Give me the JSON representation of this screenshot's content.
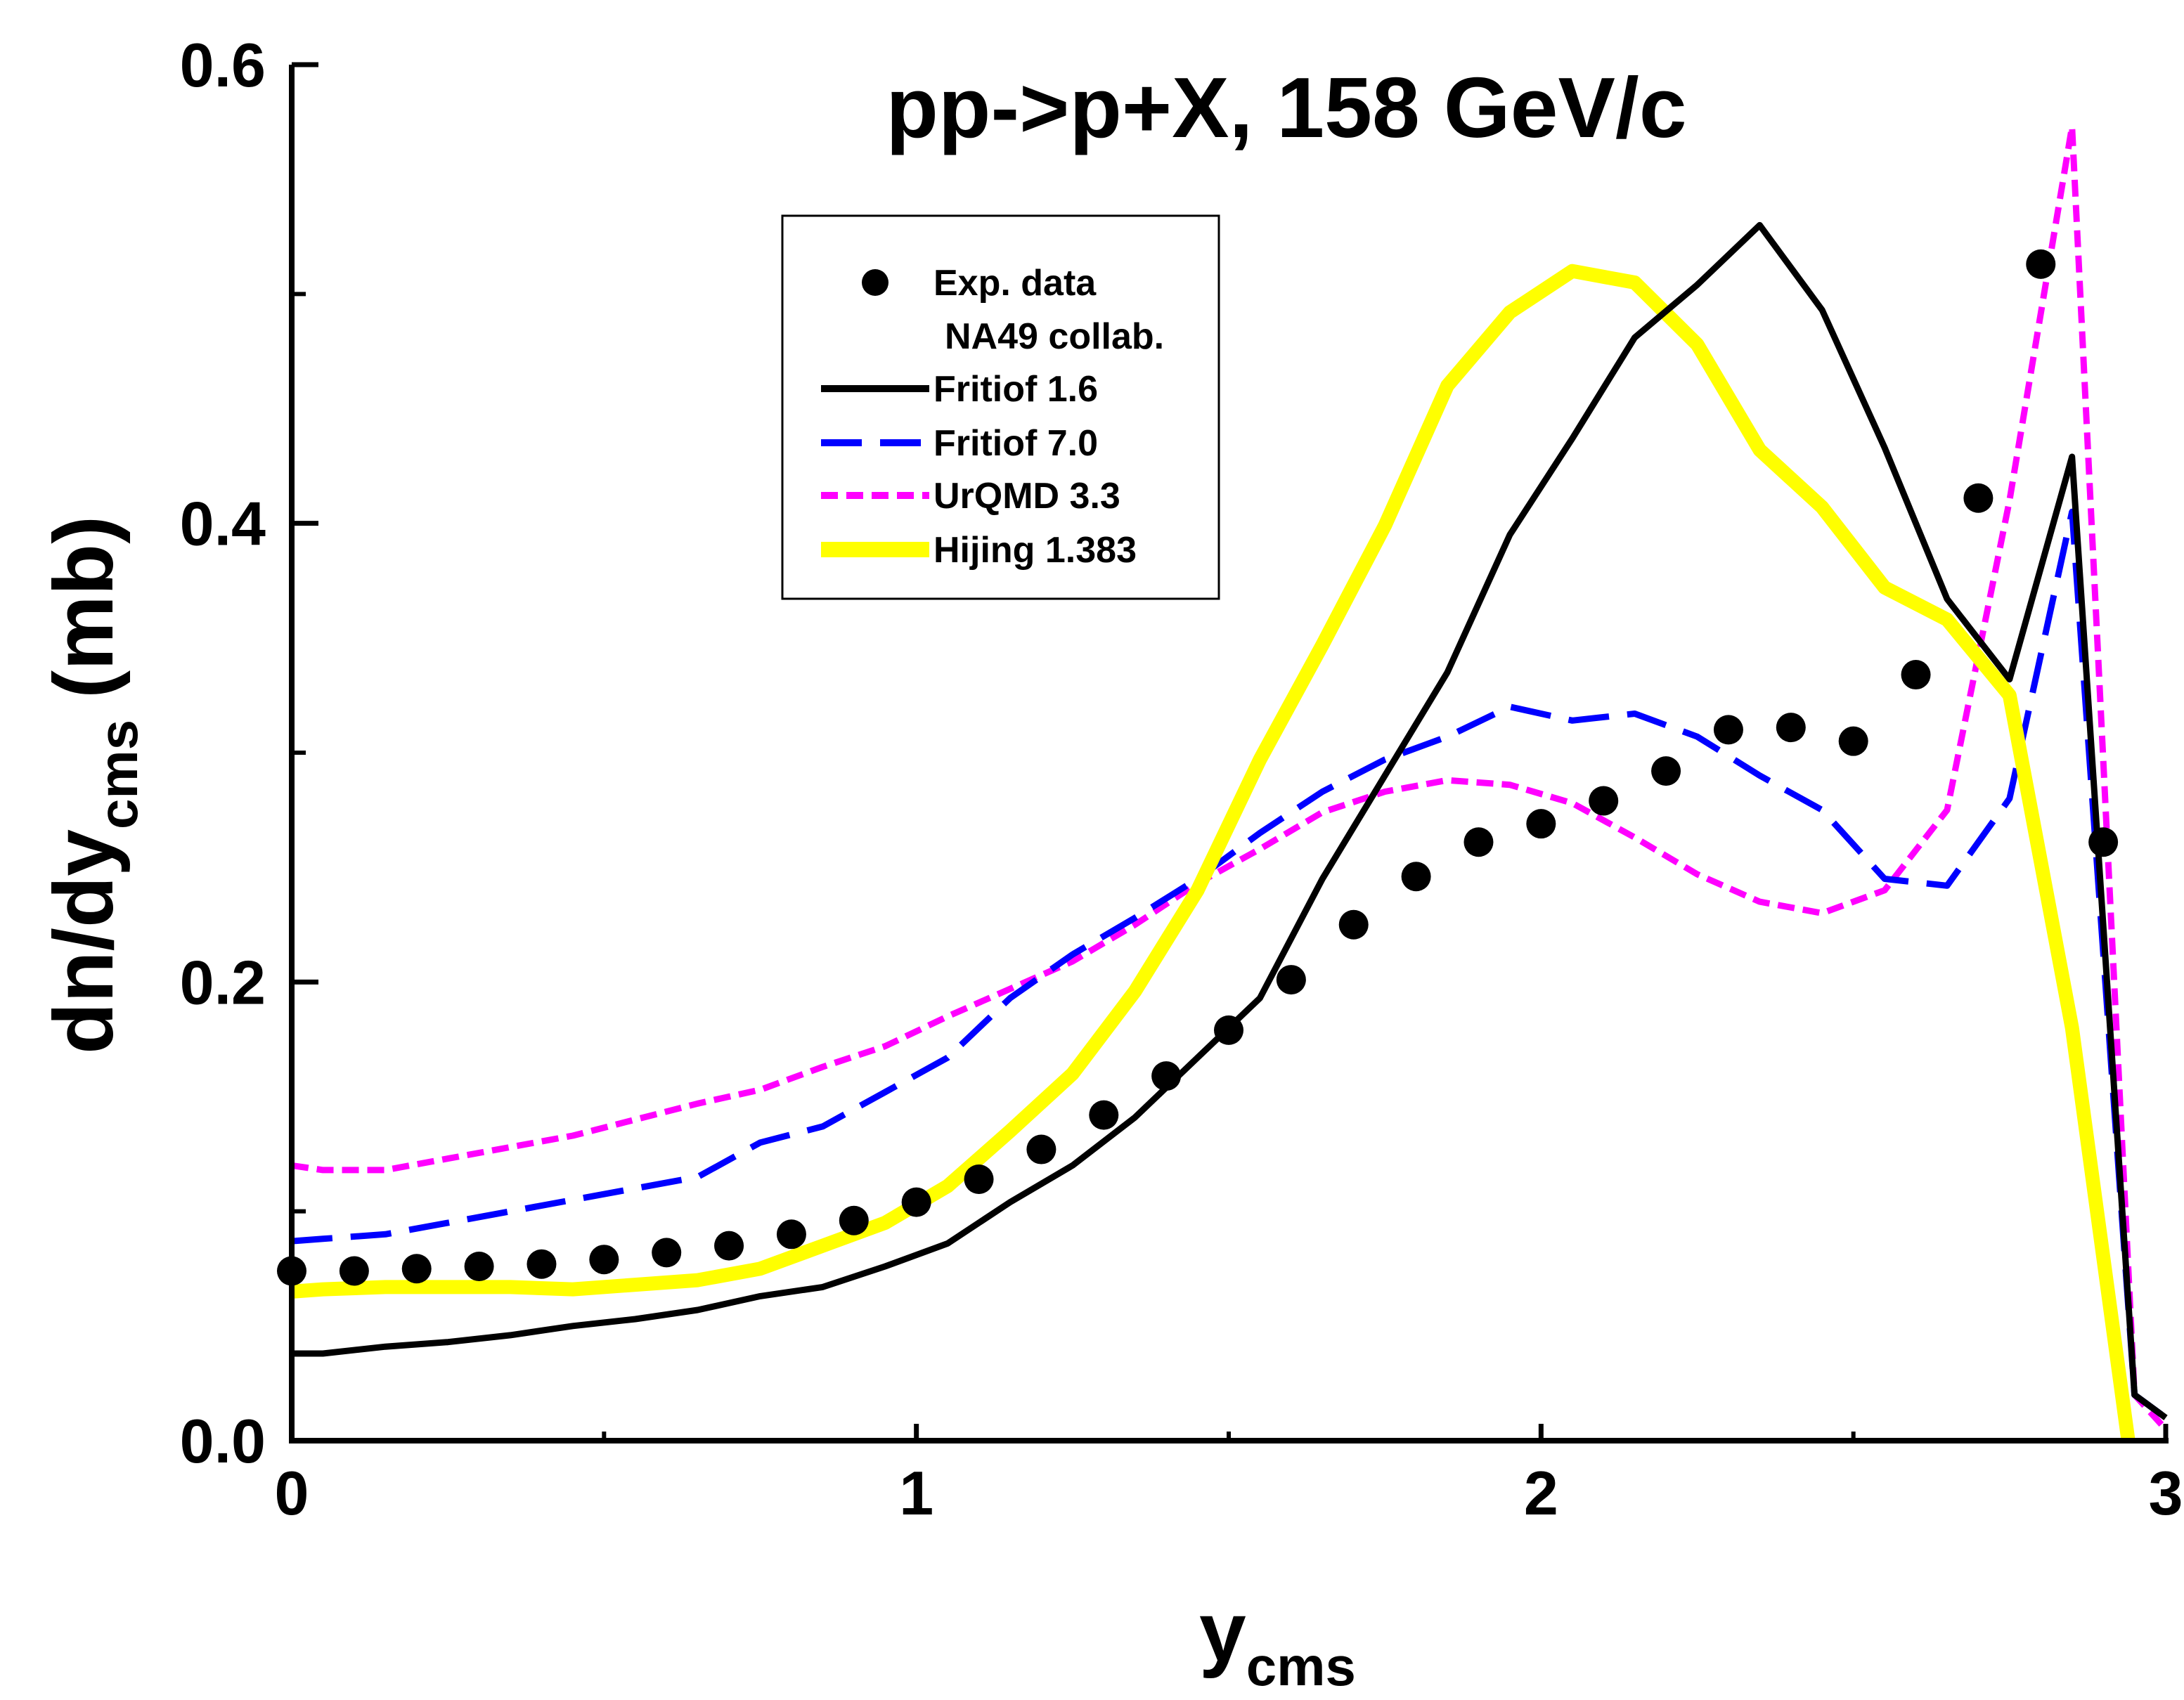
{
  "chart_data": {
    "type": "line",
    "title": "pp->p+X, 158 GeV/c",
    "xlabel": "y",
    "xlabel_sub": "cms",
    "ylabel": "dn/dy",
    "ylabel_sub": "cms",
    "ylabel_unit": "(mb)",
    "xlim": [
      0,
      3
    ],
    "ylim": [
      0,
      0.6
    ],
    "x_major_ticks": [
      0,
      1,
      2,
      3
    ],
    "x_tick_labels": [
      "0",
      "1",
      "2",
      "3"
    ],
    "x_minor_ticks": [
      0.5,
      1.5,
      2.5
    ],
    "y_major_ticks": [
      0,
      0.2,
      0.4,
      0.6
    ],
    "y_tick_labels": [
      "0.0",
      "0.2",
      "0.4",
      "0.6"
    ],
    "y_minor_ticks": [
      0.1,
      0.3,
      0.5
    ],
    "grid": false,
    "legend_position": "top-center",
    "series": [
      {
        "name": "Exp. data",
        "name_line2": "NA49 collab.",
        "style": "markers",
        "color": "#000000",
        "x": [
          0.0,
          0.1,
          0.2,
          0.3,
          0.4,
          0.5,
          0.6,
          0.7,
          0.8,
          0.9,
          1.0,
          1.1,
          1.2,
          1.3,
          1.4,
          1.5,
          1.6,
          1.7,
          1.8,
          1.9,
          2.0,
          2.1,
          2.2,
          2.3,
          2.4,
          2.5,
          2.6,
          2.7,
          2.8,
          2.9
        ],
        "y": [
          0.074,
          0.074,
          0.075,
          0.076,
          0.077,
          0.079,
          0.082,
          0.085,
          0.09,
          0.096,
          0.104,
          0.114,
          0.127,
          0.142,
          0.159,
          0.179,
          0.201,
          0.225,
          0.246,
          0.261,
          0.269,
          0.279,
          0.292,
          0.31,
          0.311,
          0.305,
          0.334,
          0.411,
          0.513,
          0.261
        ]
      },
      {
        "name": "Fritiof 1.6",
        "style": "solid",
        "color": "#000000",
        "x": [
          0.0,
          0.05,
          0.15,
          0.25,
          0.35,
          0.45,
          0.55,
          0.65,
          0.75,
          0.85,
          0.95,
          1.05,
          1.15,
          1.25,
          1.35,
          1.45,
          1.55,
          1.65,
          1.75,
          1.85,
          1.95,
          2.05,
          2.15,
          2.25,
          2.35,
          2.45,
          2.55,
          2.65,
          2.75,
          2.85,
          2.95,
          3.0
        ],
        "y": [
          0.038,
          0.038,
          0.041,
          0.043,
          0.046,
          0.05,
          0.053,
          0.057,
          0.063,
          0.067,
          0.076,
          0.086,
          0.104,
          0.12,
          0.141,
          0.167,
          0.193,
          0.245,
          0.29,
          0.335,
          0.395,
          0.437,
          0.481,
          0.504,
          0.53,
          0.493,
          0.433,
          0.367,
          0.332,
          0.429,
          0.02,
          0.01
        ]
      },
      {
        "name": "Fritiof 7.0",
        "style": "dashed",
        "color": "#0000ff",
        "x": [
          0.0,
          0.05,
          0.15,
          0.25,
          0.35,
          0.45,
          0.55,
          0.65,
          0.75,
          0.85,
          0.95,
          1.05,
          1.15,
          1.25,
          1.35,
          1.45,
          1.55,
          1.65,
          1.75,
          1.85,
          1.95,
          2.05,
          2.15,
          2.25,
          2.35,
          2.45,
          2.55,
          2.65,
          2.75,
          2.85,
          2.95,
          3.0
        ],
        "y": [
          0.087,
          0.088,
          0.09,
          0.095,
          0.1,
          0.105,
          0.11,
          0.115,
          0.13,
          0.137,
          0.152,
          0.167,
          0.193,
          0.212,
          0.228,
          0.245,
          0.265,
          0.283,
          0.297,
          0.307,
          0.32,
          0.314,
          0.317,
          0.307,
          0.29,
          0.275,
          0.245,
          0.242,
          0.28,
          0.405,
          0.02,
          0.01
        ]
      },
      {
        "name": "UrQMD 3.3",
        "style": "short-dashed",
        "color": "#ff00ff",
        "x": [
          0.0,
          0.05,
          0.15,
          0.25,
          0.35,
          0.45,
          0.55,
          0.65,
          0.75,
          0.85,
          0.95,
          1.05,
          1.15,
          1.25,
          1.35,
          1.45,
          1.55,
          1.65,
          1.75,
          1.85,
          1.95,
          2.05,
          2.15,
          2.25,
          2.35,
          2.45,
          2.55,
          2.65,
          2.75,
          2.85,
          2.95,
          3.0
        ],
        "y": [
          0.12,
          0.118,
          0.118,
          0.123,
          0.128,
          0.133,
          0.14,
          0.147,
          0.153,
          0.163,
          0.172,
          0.185,
          0.197,
          0.209,
          0.225,
          0.243,
          0.258,
          0.274,
          0.283,
          0.288,
          0.286,
          0.278,
          0.263,
          0.247,
          0.235,
          0.23,
          0.24,
          0.275,
          0.41,
          0.573,
          0.02,
          0.005
        ]
      },
      {
        "name": "Hijing 1.383",
        "style": "solid-thick",
        "color": "#ffff00",
        "x": [
          0.0,
          0.05,
          0.15,
          0.25,
          0.35,
          0.45,
          0.55,
          0.65,
          0.75,
          0.85,
          0.95,
          1.05,
          1.15,
          1.25,
          1.35,
          1.45,
          1.55,
          1.65,
          1.75,
          1.85,
          1.95,
          2.05,
          2.15,
          2.25,
          2.35,
          2.45,
          2.55,
          2.65,
          2.75,
          2.85,
          2.94
        ],
        "y": [
          0.065,
          0.066,
          0.067,
          0.067,
          0.067,
          0.066,
          0.068,
          0.07,
          0.075,
          0.085,
          0.095,
          0.111,
          0.135,
          0.16,
          0.196,
          0.24,
          0.297,
          0.347,
          0.399,
          0.46,
          0.492,
          0.51,
          0.505,
          0.478,
          0.432,
          0.407,
          0.372,
          0.358,
          0.325,
          0.18,
          0.0
        ]
      }
    ]
  }
}
